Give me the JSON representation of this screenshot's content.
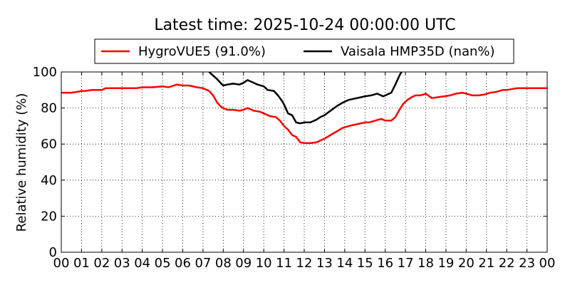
{
  "chart_data": {
    "type": "line",
    "title": "Latest time: 2025-10-24 00:00:00 UTC",
    "xlabel": "",
    "ylabel": "Relative humidity (%)",
    "xlim": [
      0,
      24
    ],
    "ylim": [
      0,
      100
    ],
    "grid": true,
    "legend_position": "top",
    "x_tick_values": [
      0,
      1,
      2,
      3,
      4,
      5,
      6,
      7,
      8,
      9,
      10,
      11,
      12,
      13,
      14,
      15,
      16,
      17,
      18,
      19,
      20,
      21,
      22,
      23,
      24
    ],
    "x_tick_labels": [
      "00",
      "01",
      "02",
      "03",
      "04",
      "05",
      "06",
      "07",
      "08",
      "09",
      "10",
      "11",
      "12",
      "13",
      "14",
      "15",
      "16",
      "17",
      "18",
      "19",
      "20",
      "21",
      "22",
      "23",
      "00"
    ],
    "y_tick_values": [
      0,
      20,
      40,
      60,
      80,
      100
    ],
    "y_tick_labels": [
      "0",
      "20",
      "40",
      "60",
      "80",
      "100"
    ],
    "series": [
      {
        "name": "HygroVUE5 (91.0%)",
        "color": "#ff0000",
        "x": [
          0,
          0.3,
          0.5,
          0.8,
          1.0,
          1.2,
          1.5,
          2.0,
          2.2,
          3.0,
          3.7,
          4.0,
          4.5,
          5.0,
          5.3,
          5.7,
          6.0,
          6.3,
          6.7,
          7.0,
          7.3,
          7.5,
          7.7,
          7.9,
          8.0,
          8.2,
          8.5,
          8.8,
          9.0,
          9.2,
          9.5,
          9.8,
          10.0,
          10.3,
          10.6,
          10.8,
          11.0,
          11.2,
          11.4,
          11.6,
          11.8,
          12.0,
          12.3,
          12.6,
          12.8,
          13.0,
          13.3,
          13.6,
          13.9,
          14.2,
          14.6,
          15.0,
          15.2,
          15.5,
          15.8,
          16.0,
          16.3,
          16.5,
          16.7,
          16.9,
          17.1,
          17.3,
          17.5,
          17.7,
          17.9,
          18.0,
          18.3,
          18.6,
          18.9,
          19.2,
          19.5,
          19.8,
          20.0,
          20.3,
          20.6,
          20.9,
          21.2,
          21.5,
          21.8,
          22.0,
          22.5,
          23.0,
          23.5,
          24.0
        ],
        "values": [
          88.5,
          88.5,
          88.5,
          89,
          89.5,
          89.5,
          90,
          90,
          91,
          91,
          91,
          91.5,
          91.5,
          92,
          91.5,
          93,
          92.5,
          92.5,
          91.5,
          91,
          89.5,
          87,
          83,
          80.5,
          80,
          79,
          79,
          78.5,
          79,
          80,
          78.5,
          78,
          77,
          75.5,
          75,
          73,
          70,
          68,
          65,
          64,
          61,
          60.5,
          60.5,
          61,
          62,
          63,
          65,
          67,
          69,
          70,
          71,
          72,
          72,
          73,
          74,
          73,
          73,
          75,
          79,
          82.5,
          84.5,
          86,
          87,
          87,
          87.5,
          88,
          85.5,
          86,
          86.5,
          87,
          88,
          88.5,
          88,
          87,
          87,
          87.5,
          88.5,
          89,
          90,
          90,
          91,
          91,
          91,
          91
        ]
      },
      {
        "name": "Vaisala HMP35D (nan%)",
        "color": "#000000",
        "x": [
          7.3,
          7.5,
          7.7,
          7.9,
          8.0,
          8.2,
          8.5,
          8.8,
          9.0,
          9.2,
          9.4,
          9.7,
          10.0,
          10.2,
          10.5,
          10.7,
          10.9,
          11.0,
          11.2,
          11.4,
          11.6,
          11.8,
          12.0,
          12.3,
          12.6,
          12.8,
          13.0,
          13.3,
          13.6,
          13.9,
          14.2,
          14.6,
          15.0,
          15.3,
          15.6,
          15.9,
          16.1,
          16.3,
          16.5,
          16.7,
          16.8
        ],
        "values": [
          100,
          98,
          96,
          93.5,
          92.5,
          93,
          93.5,
          93,
          94,
          95.5,
          94.5,
          93,
          92,
          90,
          89.5,
          87,
          84,
          82,
          77,
          76,
          72,
          71.5,
          72,
          72,
          73.5,
          75,
          76,
          78.5,
          81,
          83,
          84.5,
          85.5,
          86.5,
          87,
          88,
          86.5,
          87.5,
          88.5,
          93,
          98,
          100
        ]
      }
    ]
  }
}
